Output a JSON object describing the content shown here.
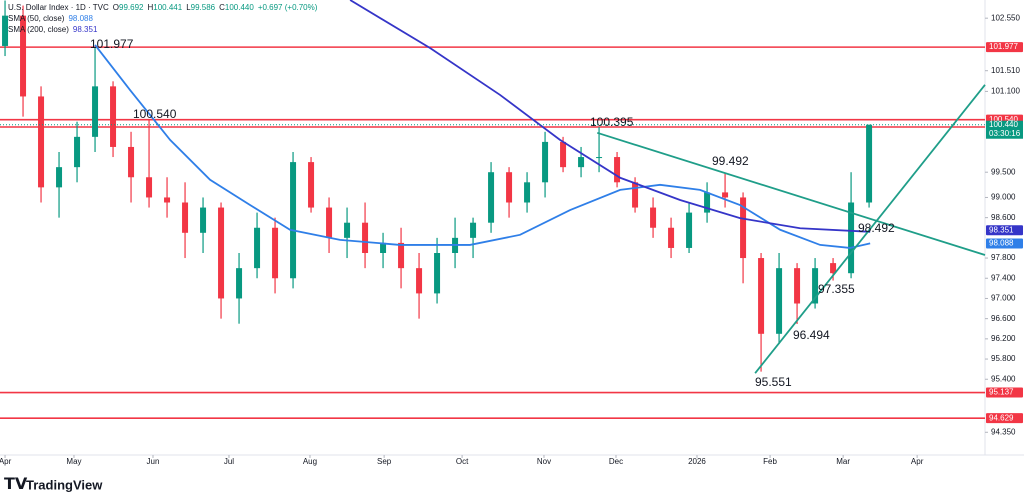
{
  "chart_data": {
    "type": "candlestick",
    "title": "U.S. Dollar Index · 1D · TVC",
    "ohlc": [
      {
        "label": "O",
        "value": 99.692
      },
      {
        "label": "H",
        "value": 100.441
      },
      {
        "label": "L",
        "value": 99.586
      },
      {
        "label": "C",
        "value": 100.44,
        "value_label": "100.440"
      }
    ],
    "change": "+0.697 (+0.70%)",
    "brand": "TradingView",
    "up_color": "#089981",
    "down_color": "#f23645",
    "candles": {
      "x": [
        0,
        1,
        2,
        3,
        4,
        5,
        6,
        7,
        8,
        9,
        10,
        11,
        12,
        13,
        14,
        15,
        16,
        17,
        18,
        19,
        20,
        21,
        22,
        23,
        24,
        25,
        26,
        27,
        28,
        29,
        30,
        31,
        32,
        33,
        34,
        35,
        36,
        37,
        38,
        39,
        40,
        41,
        42,
        43,
        44,
        45,
        46,
        47,
        48
      ],
      "open": [
        102.0,
        102.6,
        101.0,
        99.2,
        99.6,
        100.2,
        101.2,
        100.0,
        99.4,
        99.0,
        98.9,
        98.3,
        98.8,
        97.0,
        97.6,
        98.4,
        97.4,
        99.7,
        98.8,
        98.2,
        98.5,
        97.9,
        98.1,
        97.6,
        97.1,
        97.9,
        98.2,
        98.5,
        99.5,
        98.9,
        99.3,
        100.1,
        99.6,
        99.8,
        99.8,
        99.3,
        98.8,
        98.4,
        98.0,
        98.7,
        99.1,
        99.0,
        97.8,
        96.3,
        97.6,
        96.9,
        97.7,
        97.5,
        98.9
      ],
      "high": [
        102.9,
        102.8,
        101.2,
        99.9,
        100.5,
        101.977,
        101.3,
        100.3,
        100.54,
        99.4,
        99.3,
        99.0,
        98.9,
        97.9,
        98.7,
        98.6,
        99.9,
        99.8,
        99.0,
        98.8,
        98.9,
        98.3,
        98.4,
        97.9,
        98.2,
        98.6,
        98.6,
        99.7,
        99.6,
        99.5,
        100.3,
        100.2,
        100.0,
        100.395,
        99.9,
        99.4,
        99.0,
        98.6,
        98.9,
        99.3,
        99.492,
        99.1,
        97.9,
        97.9,
        97.7,
        97.8,
        97.8,
        99.5,
        100.441
      ],
      "low": [
        101.8,
        100.6,
        98.9,
        98.6,
        99.3,
        99.9,
        99.8,
        98.9,
        98.8,
        98.6,
        97.8,
        97.9,
        96.6,
        96.5,
        97.4,
        97.1,
        97.2,
        98.7,
        97.9,
        97.8,
        97.6,
        97.6,
        97.2,
        96.6,
        96.9,
        97.6,
        97.8,
        98.3,
        98.6,
        98.7,
        99.0,
        99.5,
        99.4,
        99.5,
        99.2,
        98.7,
        98.2,
        97.8,
        97.9,
        98.5,
        98.8,
        97.3,
        95.551,
        96.1,
        96.494,
        96.8,
        97.355,
        97.4,
        98.8
      ],
      "close": [
        102.6,
        101.0,
        99.2,
        99.6,
        100.2,
        101.2,
        100.0,
        99.4,
        99.0,
        98.9,
        98.3,
        98.8,
        97.0,
        97.6,
        98.4,
        97.4,
        99.7,
        98.8,
        98.2,
        98.5,
        97.9,
        98.1,
        97.6,
        97.1,
        97.9,
        98.2,
        98.5,
        99.5,
        98.9,
        99.3,
        100.1,
        99.6,
        99.8,
        99.8,
        99.3,
        98.8,
        98.4,
        98.0,
        98.7,
        99.1,
        99.0,
        97.8,
        96.3,
        97.6,
        96.9,
        97.6,
        97.5,
        98.9,
        100.44
      ]
    },
    "indicators": [
      {
        "name": "SMA (50, close)",
        "last": 98.088,
        "color": "#2f7fe8",
        "x": [
          5,
          6.94,
          9.17,
          11.39,
          13.61,
          15.83,
          18.61,
          21.94,
          25.83,
          28.61,
          31.39,
          34.17,
          36.39,
          38.61,
          40.83,
          43.06,
          45.28,
          46.94,
          48.06
        ],
        "values": [
          102.02,
          101.13,
          100.14,
          99.35,
          98.85,
          98.36,
          98.16,
          98.06,
          98.06,
          98.26,
          98.75,
          99.15,
          99.25,
          99.15,
          98.85,
          98.36,
          98.06,
          98.0,
          98.09
        ]
      },
      {
        "name": "SMA (200, close)",
        "last": 98.351,
        "color": "#3535c8",
        "x": [
          19.17,
          23.61,
          27.5,
          30.83,
          34.17,
          37.5,
          40.83,
          44.17,
          48.06
        ],
        "values": [
          102.91,
          101.96,
          101.03,
          100.14,
          99.39,
          98.95,
          98.59,
          98.39,
          98.32
        ]
      }
    ],
    "levels": [
      {
        "value": 101.977,
        "label": "101.977",
        "color": "#f23645"
      },
      {
        "value": 100.54,
        "label": "100.540",
        "color": "#f23645"
      },
      {
        "value": 100.395,
        "label": "100.395",
        "color": "#f23645"
      },
      {
        "value": 95.137,
        "label": "95.137",
        "color": "#f23645"
      },
      {
        "value": 94.629,
        "label": "94.629",
        "color": "#f23645"
      }
    ],
    "price_label": {
      "value": 100.44,
      "label": "100.440",
      "countdown": "03:30:16"
    },
    "trendlines": [
      {
        "color": "#1f9e89",
        "from": [
          32.9,
          100.28
        ],
        "to": [
          54.44,
          97.86
        ]
      },
      {
        "color": "#1f9e89",
        "from": [
          41.67,
          95.52
        ],
        "to": [
          54.44,
          101.23
        ]
      }
    ],
    "annotations": [
      "101.977",
      "100.540",
      "100.395",
      "99.492",
      "98.492",
      "97.355",
      "96.494",
      "95.551"
    ],
    "xlim": [
      -0.28,
      54.44
    ],
    "ylim": [
      93.9,
      102.91
    ],
    "xticks": [
      {
        "value": 0,
        "label": "Apr"
      },
      {
        "value": 3.83,
        "label": "May"
      },
      {
        "value": 8.22,
        "label": "Jun"
      },
      {
        "value": 12.44,
        "label": "Jul"
      },
      {
        "value": 16.94,
        "label": "Aug"
      },
      {
        "value": 21.06,
        "label": "Sep"
      },
      {
        "value": 25.39,
        "label": "Oct"
      },
      {
        "value": 29.94,
        "label": "Nov"
      },
      {
        "value": 33.94,
        "label": "Dec"
      },
      {
        "value": 38.44,
        "label": "2026"
      },
      {
        "value": 42.5,
        "label": "Feb"
      },
      {
        "value": 46.56,
        "label": "Mar"
      },
      {
        "value": 50.67,
        "label": "Apr"
      }
    ],
    "yticks": [
      {
        "value": 102.55,
        "label": "102.550"
      },
      {
        "value": 101.51,
        "label": "101.510"
      },
      {
        "value": 101.1,
        "label": "101.100"
      },
      {
        "value": 99.5,
        "label": "99.500"
      },
      {
        "value": 99.0,
        "label": "99.000"
      },
      {
        "value": 98.6,
        "label": "98.600"
      },
      {
        "value": 97.8,
        "label": "97.800"
      },
      {
        "value": 97.4,
        "label": "97.400"
      },
      {
        "value": 97.0,
        "label": "97.000"
      },
      {
        "value": 96.6,
        "label": "96.600"
      },
      {
        "value": 96.2,
        "label": "96.200"
      },
      {
        "value": 95.8,
        "label": "95.800"
      },
      {
        "value": 95.4,
        "label": "95.400"
      },
      {
        "value": 94.35,
        "label": "94.350"
      }
    ]
  }
}
